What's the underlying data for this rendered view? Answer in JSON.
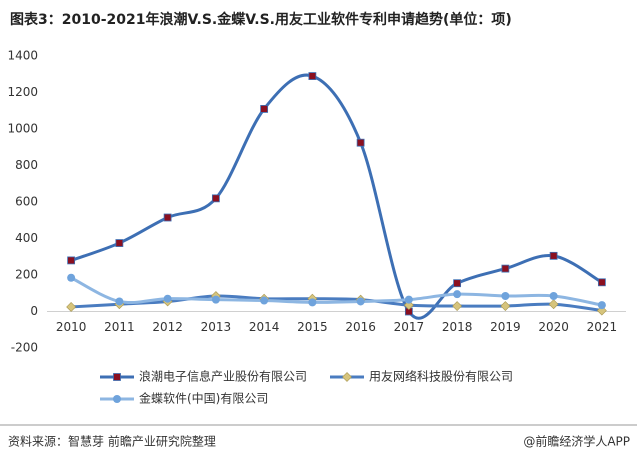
{
  "chart_data": {
    "type": "line",
    "title": "图表3：2010-2021年浪潮V.S.金蝶V.S.用友工业软件专利申请趋势(单位：项)",
    "source": "资料来源：智慧芽 前瞻产业研究院整理",
    "credit": "@前瞻经济学人APP",
    "categories": [
      "2010",
      "2011",
      "2012",
      "2013",
      "2014",
      "2015",
      "2016",
      "2017",
      "2018",
      "2019",
      "2020",
      "2021"
    ],
    "series": [
      {
        "name": "浪潮电子信息产业股份有限公司",
        "color": "#3d6fb4",
        "marker_color": "#8b1020",
        "marker": "square",
        "values": [
          280,
          375,
          515,
          620,
          1110,
          1290,
          925,
          0,
          155,
          235,
          305,
          160
        ]
      },
      {
        "name": "用友网络科技股份有限公司",
        "color": "#4a7cc0",
        "marker_color": "#d6c47c",
        "marker": "diamond",
        "values": [
          25,
          40,
          55,
          85,
          70,
          70,
          65,
          35,
          30,
          30,
          40,
          5
        ]
      },
      {
        "name": "金蝶软件(中国)有限公司",
        "color": "#8db6e2",
        "marker_color": "#6fa3dc",
        "marker": "circle",
        "values": [
          185,
          55,
          70,
          65,
          60,
          50,
          55,
          65,
          95,
          85,
          85,
          35
        ]
      }
    ],
    "ylim": [
      -200,
      1400
    ],
    "yticks": [
      -200,
      0,
      200,
      400,
      600,
      800,
      1000,
      1200,
      1400
    ]
  }
}
